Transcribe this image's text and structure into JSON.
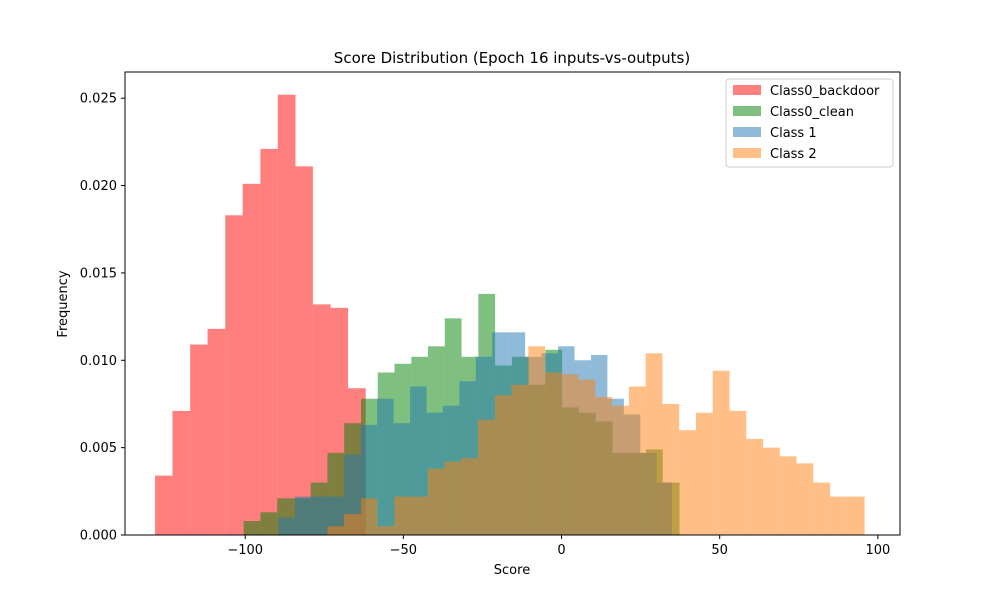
{
  "chart_data": {
    "type": "bar",
    "title": "Score Distribution (Epoch 16 inputs-vs-outputs)",
    "xlabel": "Score",
    "ylabel": "Frequency",
    "xlim": [
      -138,
      107
    ],
    "ylim": [
      0,
      0.0265
    ],
    "xticks": [
      -100,
      -50,
      0,
      50,
      100
    ],
    "xtick_labels": [
      "−100",
      "−50",
      "0",
      "50",
      "100"
    ],
    "yticks": [
      0,
      0.005,
      0.01,
      0.015,
      0.02,
      0.025
    ],
    "ytick_labels": [
      "0.000",
      "0.005",
      "0.010",
      "0.015",
      "0.020",
      "0.025"
    ],
    "legend_position": "top-right",
    "grid": false,
    "series": [
      {
        "name": "Class0_backdoor",
        "color": "#ff0000",
        "alpha": 0.5,
        "edges": [
          -128.5,
          -123.0,
          -117.4,
          -111.9,
          -106.3,
          -100.8,
          -95.2,
          -89.7,
          -84.1,
          -78.6,
          -73.0,
          -67.5,
          -61.9
        ],
        "values": [
          0.0034,
          0.0071,
          0.0109,
          0.0118,
          0.0183,
          0.0201,
          0.0221,
          0.0252,
          0.0211,
          0.0132,
          0.013,
          0.0084
        ]
      },
      {
        "name": "Class0_clean",
        "color": "#008000",
        "alpha": 0.5,
        "edges": [
          -100.5,
          -95.2,
          -89.9,
          -84.6,
          -79.3,
          -74.0,
          -68.7,
          -63.4,
          -58.1,
          -52.8,
          -47.5,
          -42.2,
          -36.9,
          -31.6,
          -26.3,
          -21.0,
          -15.7,
          -10.4,
          -5.1,
          0.2,
          5.5,
          10.8,
          16.1,
          21.4,
          26.7,
          32.0,
          37.3
        ],
        "values": [
          0.0008,
          0.0013,
          0.0021,
          0.0021,
          0.003,
          0.0047,
          0.0064,
          0.0078,
          0.0093,
          0.0098,
          0.0102,
          0.0108,
          0.0124,
          0.0102,
          0.0138,
          0.0097,
          0.0102,
          0.0086,
          0.0106,
          0.0073,
          0.007,
          0.0065,
          0.0047,
          0.0047,
          0.0049,
          0.003
        ]
      },
      {
        "name": "Class 1",
        "color": "#1f77b4",
        "alpha": 0.5,
        "edges": [
          -89.5,
          -84.3,
          -79.1,
          -73.9,
          -68.7,
          -63.5,
          -58.3,
          -53.1,
          -47.9,
          -42.7,
          -37.5,
          -32.3,
          -27.1,
          -21.9,
          -16.7,
          -11.5,
          -6.3,
          -1.1,
          4.1,
          9.3,
          14.5,
          19.7,
          24.9,
          30.1,
          34.9
        ],
        "values": [
          0.001,
          0.0022,
          0.0022,
          0.0022,
          0.0046,
          0.0063,
          0.0078,
          0.0064,
          0.0085,
          0.007,
          0.0074,
          0.0088,
          0.0102,
          0.0116,
          0.0116,
          0.0102,
          0.0104,
          0.0108,
          0.01,
          0.0103,
          0.0078,
          0.0069,
          0.0047,
          0.003
        ]
      },
      {
        "name": "Class 2",
        "color": "#ff7f0e",
        "alpha": 0.5,
        "edges": [
          -74.0,
          -68.8,
          -63.4,
          -58.2,
          -52.9,
          -47.6,
          -42.3,
          -37.0,
          -31.7,
          -26.4,
          -21.1,
          -15.8,
          -10.5,
          -5.2,
          0.1,
          5.4,
          10.7,
          16.0,
          21.3,
          26.6,
          31.9,
          37.2,
          42.5,
          47.8,
          53.1,
          58.4,
          63.7,
          69.0,
          74.3,
          79.6,
          84.9,
          90.2,
          95.8
        ],
        "values": [
          0.0005,
          0.0012,
          0.0021,
          0.0005,
          0.0022,
          0.0022,
          0.0038,
          0.0042,
          0.0044,
          0.0066,
          0.008,
          0.0086,
          0.0108,
          0.0093,
          0.0092,
          0.0089,
          0.0079,
          0.0074,
          0.0085,
          0.0104,
          0.0075,
          0.006,
          0.007,
          0.0094,
          0.0071,
          0.0055,
          0.005,
          0.0045,
          0.0041,
          0.003,
          0.0022,
          0.0022
        ]
      }
    ]
  }
}
